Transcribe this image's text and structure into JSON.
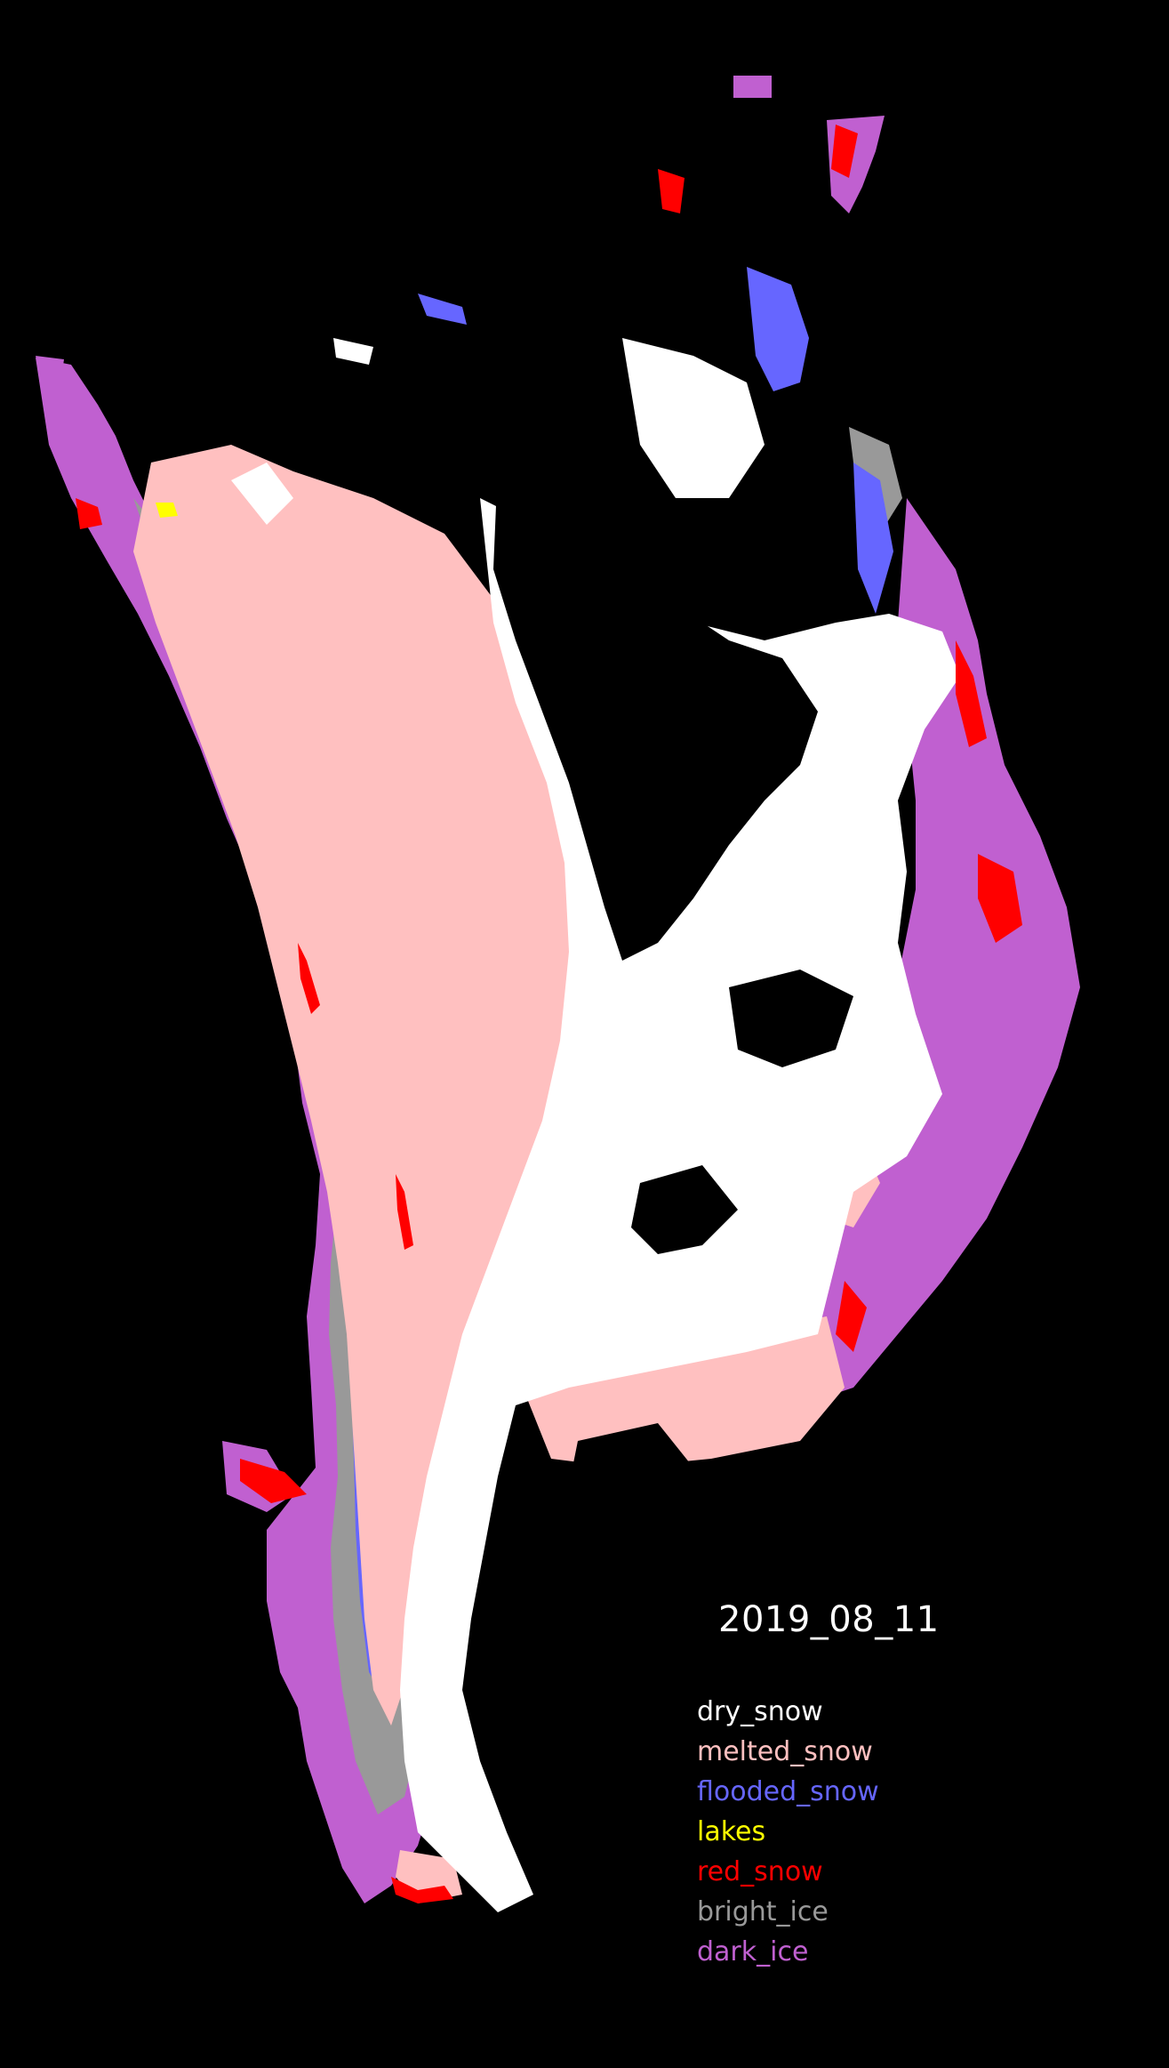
{
  "map": {
    "date_label": "2019_08_11",
    "background": "#000000",
    "legend": [
      {
        "label": "dry_snow",
        "color": "#ffffff"
      },
      {
        "label": "melted_snow",
        "color": "#ffc0c0"
      },
      {
        "label": "flooded_snow",
        "color": "#6666ff"
      },
      {
        "label": "lakes",
        "color": "#ffff00"
      },
      {
        "label": "red_snow",
        "color": "#ff0000"
      },
      {
        "label": "bright_ice",
        "color": "#999999"
      },
      {
        "label": "dark_ice",
        "color": "#c060d0"
      }
    ]
  }
}
